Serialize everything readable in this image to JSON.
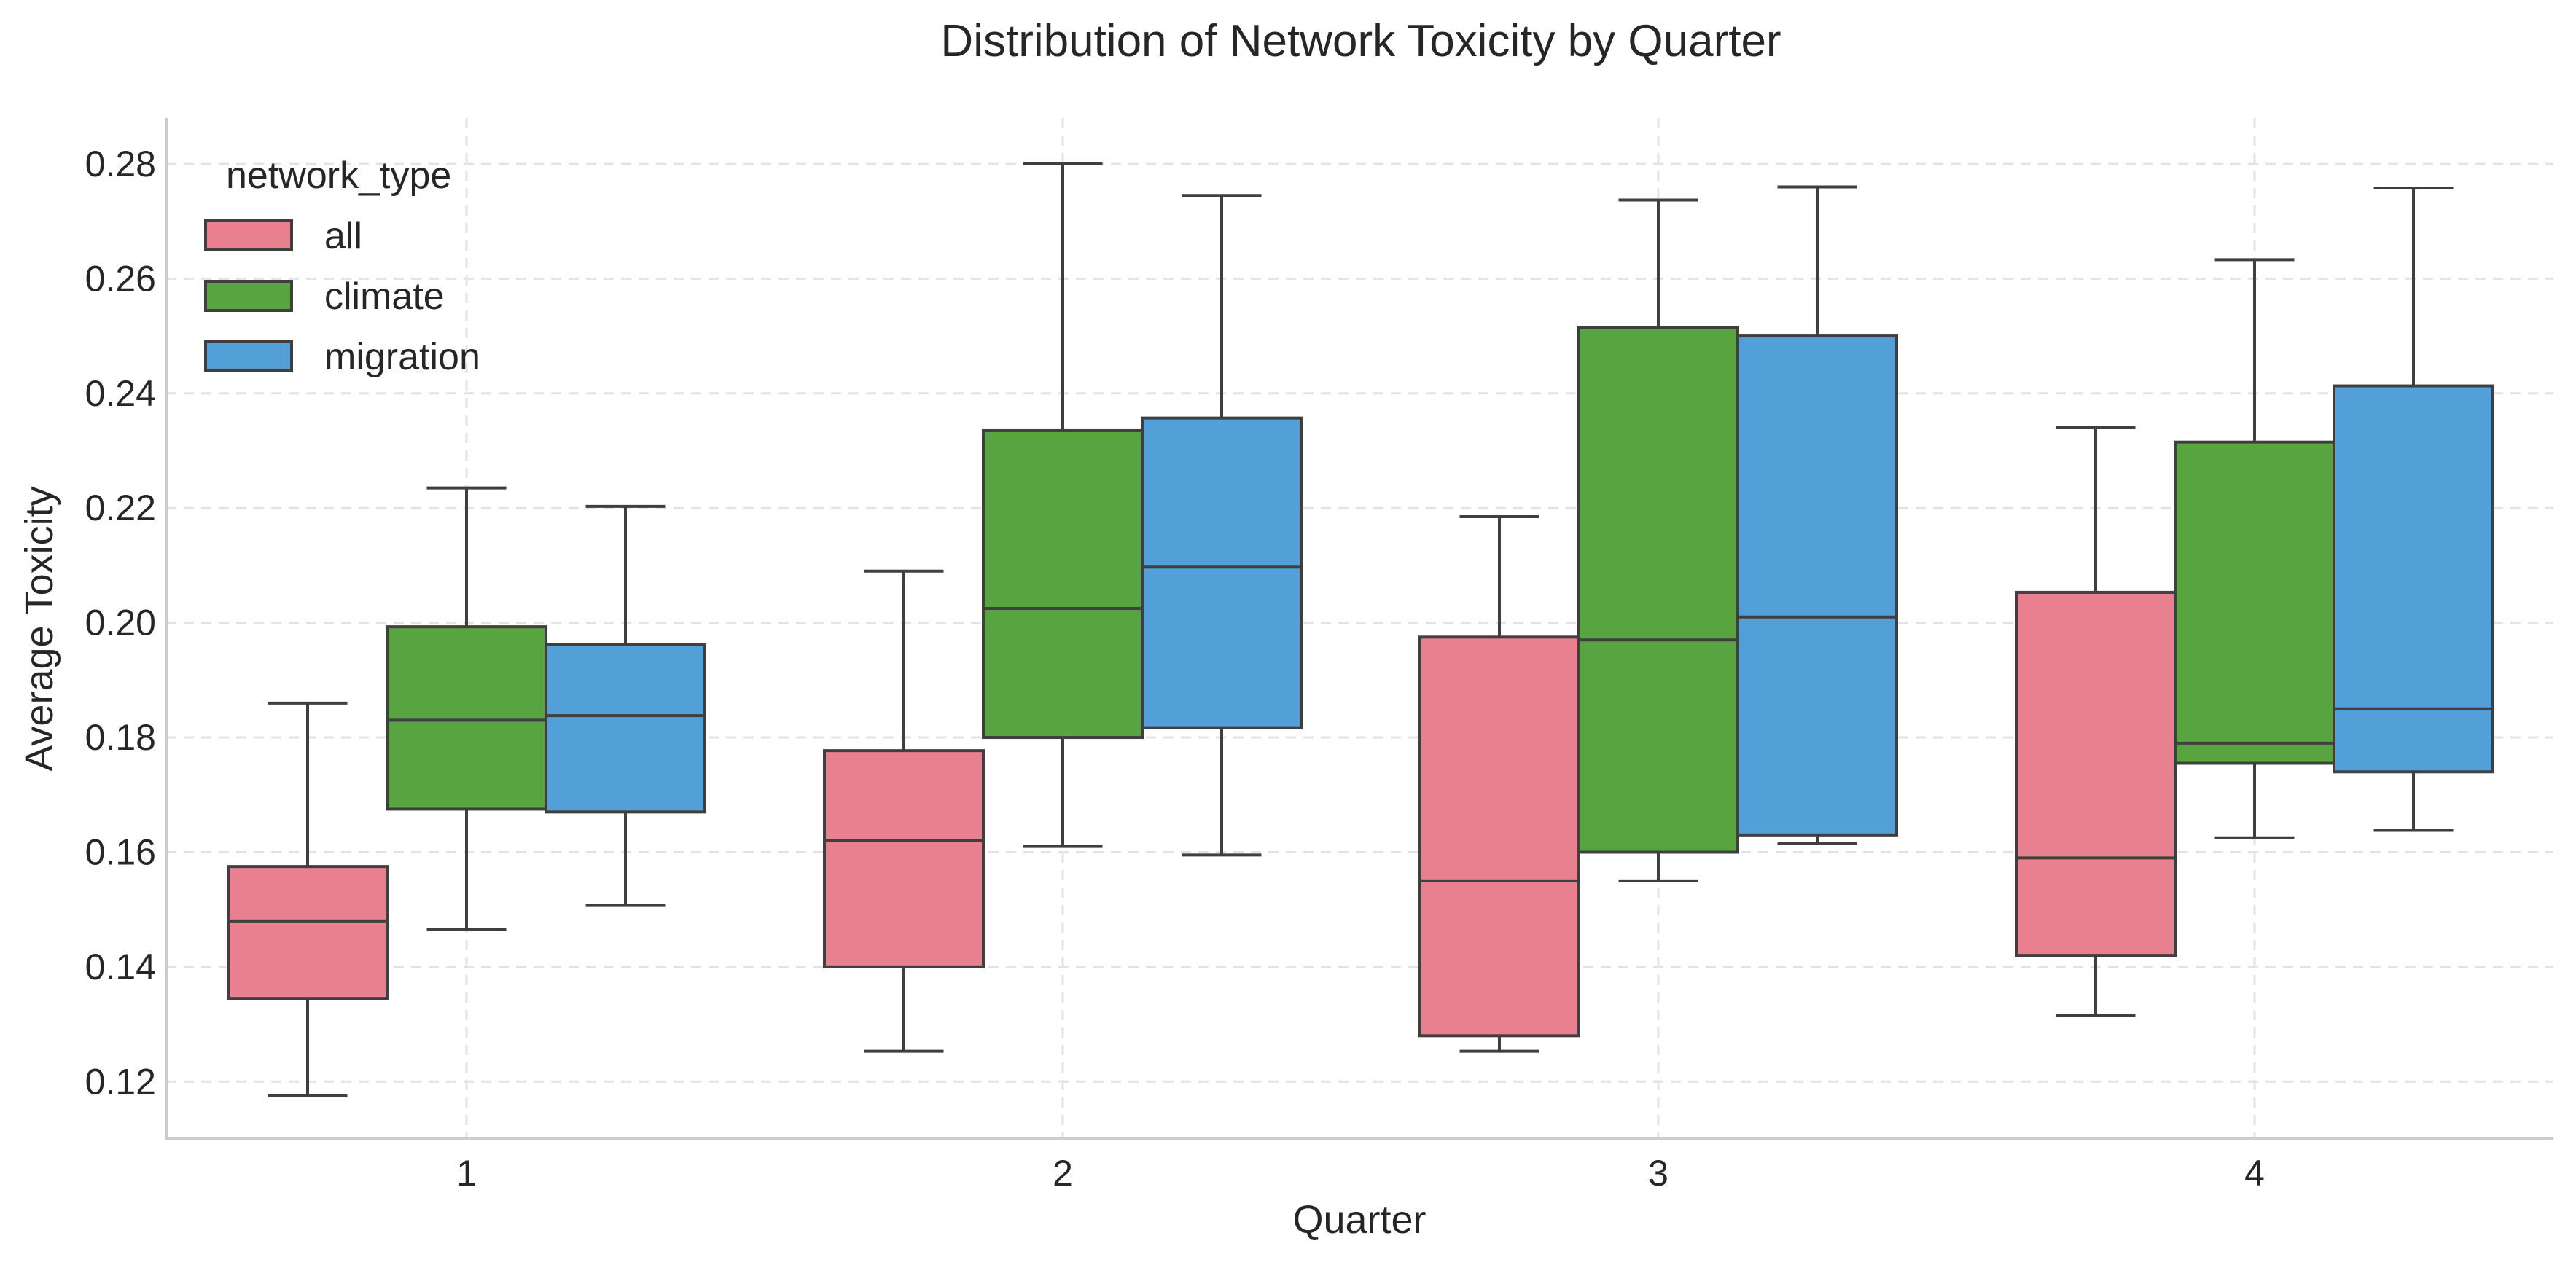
{
  "chart_data": {
    "type": "box",
    "title": "Distribution of Network Toxicity by Quarter",
    "xlabel": "Quarter",
    "ylabel": "Average Toxicity",
    "categories": [
      "1",
      "2",
      "3",
      "4"
    ],
    "ylim": [
      0.11,
      0.288
    ],
    "yticks": [
      0.12,
      0.14,
      0.16,
      0.18,
      0.2,
      0.22,
      0.24,
      0.26,
      0.28
    ],
    "ytick_labels": [
      "0.12",
      "0.14",
      "0.16",
      "0.18",
      "0.20",
      "0.22",
      "0.24",
      "0.26",
      "0.28"
    ],
    "grid": true,
    "legend": {
      "title": "network_type",
      "placement": "top-left"
    },
    "series": [
      {
        "name": "all",
        "color": "#e8808f",
        "boxes": [
          {
            "whislo": 0.1175,
            "q1": 0.1345,
            "med": 0.148,
            "q3": 0.1575,
            "whishi": 0.186
          },
          {
            "whislo": 0.1253,
            "q1": 0.14,
            "med": 0.162,
            "q3": 0.1777,
            "whishi": 0.209
          },
          {
            "whislo": 0.1253,
            "q1": 0.128,
            "med": 0.155,
            "q3": 0.1975,
            "whishi": 0.2185
          },
          {
            "whislo": 0.1315,
            "q1": 0.142,
            "med": 0.159,
            "q3": 0.2053,
            "whishi": 0.234
          }
        ]
      },
      {
        "name": "climate",
        "color": "#58a441",
        "boxes": [
          {
            "whislo": 0.1465,
            "q1": 0.1675,
            "med": 0.183,
            "q3": 0.1993,
            "whishi": 0.2235
          },
          {
            "whislo": 0.161,
            "q1": 0.18,
            "med": 0.2025,
            "q3": 0.2335,
            "whishi": 0.28
          },
          {
            "whislo": 0.155,
            "q1": 0.16,
            "med": 0.197,
            "q3": 0.2515,
            "whishi": 0.2737
          },
          {
            "whislo": 0.1625,
            "q1": 0.1755,
            "med": 0.179,
            "q3": 0.2315,
            "whishi": 0.2633
          }
        ]
      },
      {
        "name": "migration",
        "color": "#52a0d7",
        "boxes": [
          {
            "whislo": 0.1507,
            "q1": 0.167,
            "med": 0.1838,
            "q3": 0.1962,
            "whishi": 0.2203
          },
          {
            "whislo": 0.1595,
            "q1": 0.1817,
            "med": 0.2097,
            "q3": 0.2357,
            "whishi": 0.2745
          },
          {
            "whislo": 0.1615,
            "q1": 0.163,
            "med": 0.201,
            "q3": 0.25,
            "whishi": 0.276
          },
          {
            "whislo": 0.1638,
            "q1": 0.174,
            "med": 0.185,
            "q3": 0.2413,
            "whishi": 0.2758
          }
        ]
      }
    ]
  }
}
